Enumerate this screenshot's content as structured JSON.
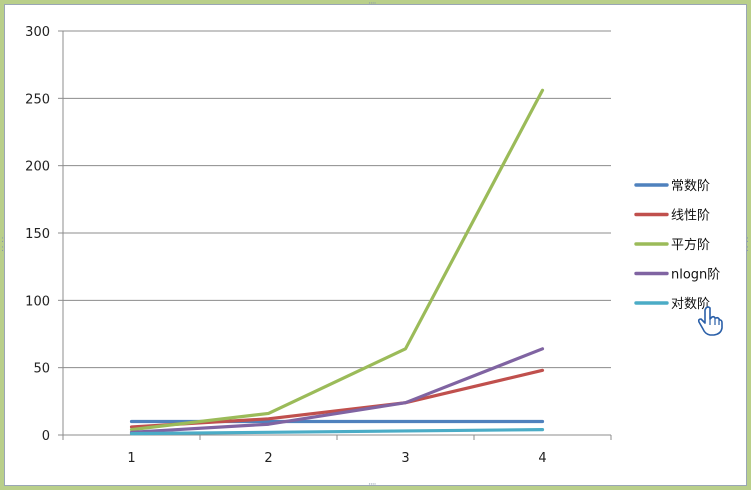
{
  "chart_data": {
    "type": "line",
    "categories": [
      "1",
      "2",
      "3",
      "4"
    ],
    "ylim": [
      0,
      300
    ],
    "yticks": [
      0,
      50,
      100,
      150,
      200,
      250,
      300
    ],
    "grid": true,
    "legend_position": "right",
    "title": "",
    "xlabel": "",
    "ylabel": "",
    "series": [
      {
        "name": "常数阶",
        "color": "#4f81bd",
        "values": [
          10,
          10,
          10,
          10
        ]
      },
      {
        "name": "线性阶",
        "color": "#c0504d",
        "values": [
          6,
          12,
          24,
          48
        ]
      },
      {
        "name": "平方阶",
        "color": "#9bbb59",
        "values": [
          4,
          16,
          64,
          256
        ]
      },
      {
        "name": "nlogn阶",
        "color": "#8064a2",
        "values": [
          2,
          8,
          24,
          64
        ]
      },
      {
        "name": "对数阶",
        "color": "#4bacc6",
        "values": [
          1,
          2,
          3,
          4
        ]
      }
    ]
  },
  "icons": {
    "cursor": "hand-pointer-icon"
  }
}
